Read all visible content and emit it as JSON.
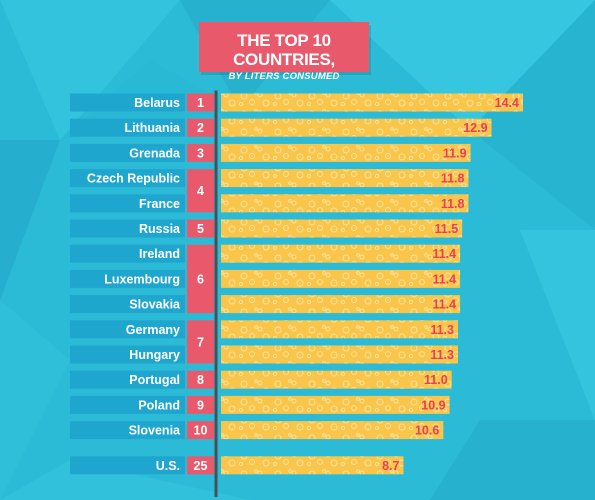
{
  "title": "THE TOP 10 COUNTRIES,",
  "subtitle": "BY LITERS CONSUMED",
  "colors": {
    "background": "#2bbbd6",
    "label_band": "#1fa6cf",
    "rank_badge": "#e85a6b",
    "bar": "#f9c64b",
    "value_text": "#e8405a",
    "axis": "#4a4f57"
  },
  "chart_data": {
    "type": "bar",
    "orientation": "horizontal",
    "title": "THE TOP 10 COUNTRIES,",
    "subtitle": "BY LITERS CONSUMED",
    "xlim": [
      0,
      14.4
    ],
    "categories": [
      "Belarus",
      "Lithuania",
      "Grenada",
      "Czech Republic",
      "France",
      "Russia",
      "Ireland",
      "Luxembourg",
      "Slovakia",
      "Germany",
      "Hungary",
      "Portugal",
      "Poland",
      "Slovenia",
      "U.S."
    ],
    "values": [
      14.4,
      12.9,
      11.9,
      11.8,
      11.8,
      11.5,
      11.4,
      11.4,
      11.4,
      11.3,
      11.3,
      11.0,
      10.9,
      10.6,
      8.7
    ],
    "value_labels": [
      "14.4",
      "12.9",
      "11.9",
      "11.8",
      "11.8",
      "11.5",
      "11.4",
      "11.4",
      "11.4",
      "11.3",
      "11.3",
      "11.0",
      "10.9",
      "10.6",
      "8.7"
    ],
    "rank_groups": [
      {
        "rank": "1",
        "start": 0,
        "end": 0
      },
      {
        "rank": "2",
        "start": 1,
        "end": 1
      },
      {
        "rank": "3",
        "start": 2,
        "end": 2
      },
      {
        "rank": "4",
        "start": 3,
        "end": 4
      },
      {
        "rank": "5",
        "start": 5,
        "end": 5
      },
      {
        "rank": "6",
        "start": 6,
        "end": 8
      },
      {
        "rank": "7",
        "start": 9,
        "end": 10
      },
      {
        "rank": "8",
        "start": 11,
        "end": 11
      },
      {
        "rank": "9",
        "start": 12,
        "end": 12
      },
      {
        "rank": "10",
        "start": 13,
        "end": 13
      },
      {
        "rank": "25",
        "start": 14,
        "end": 14
      }
    ]
  }
}
